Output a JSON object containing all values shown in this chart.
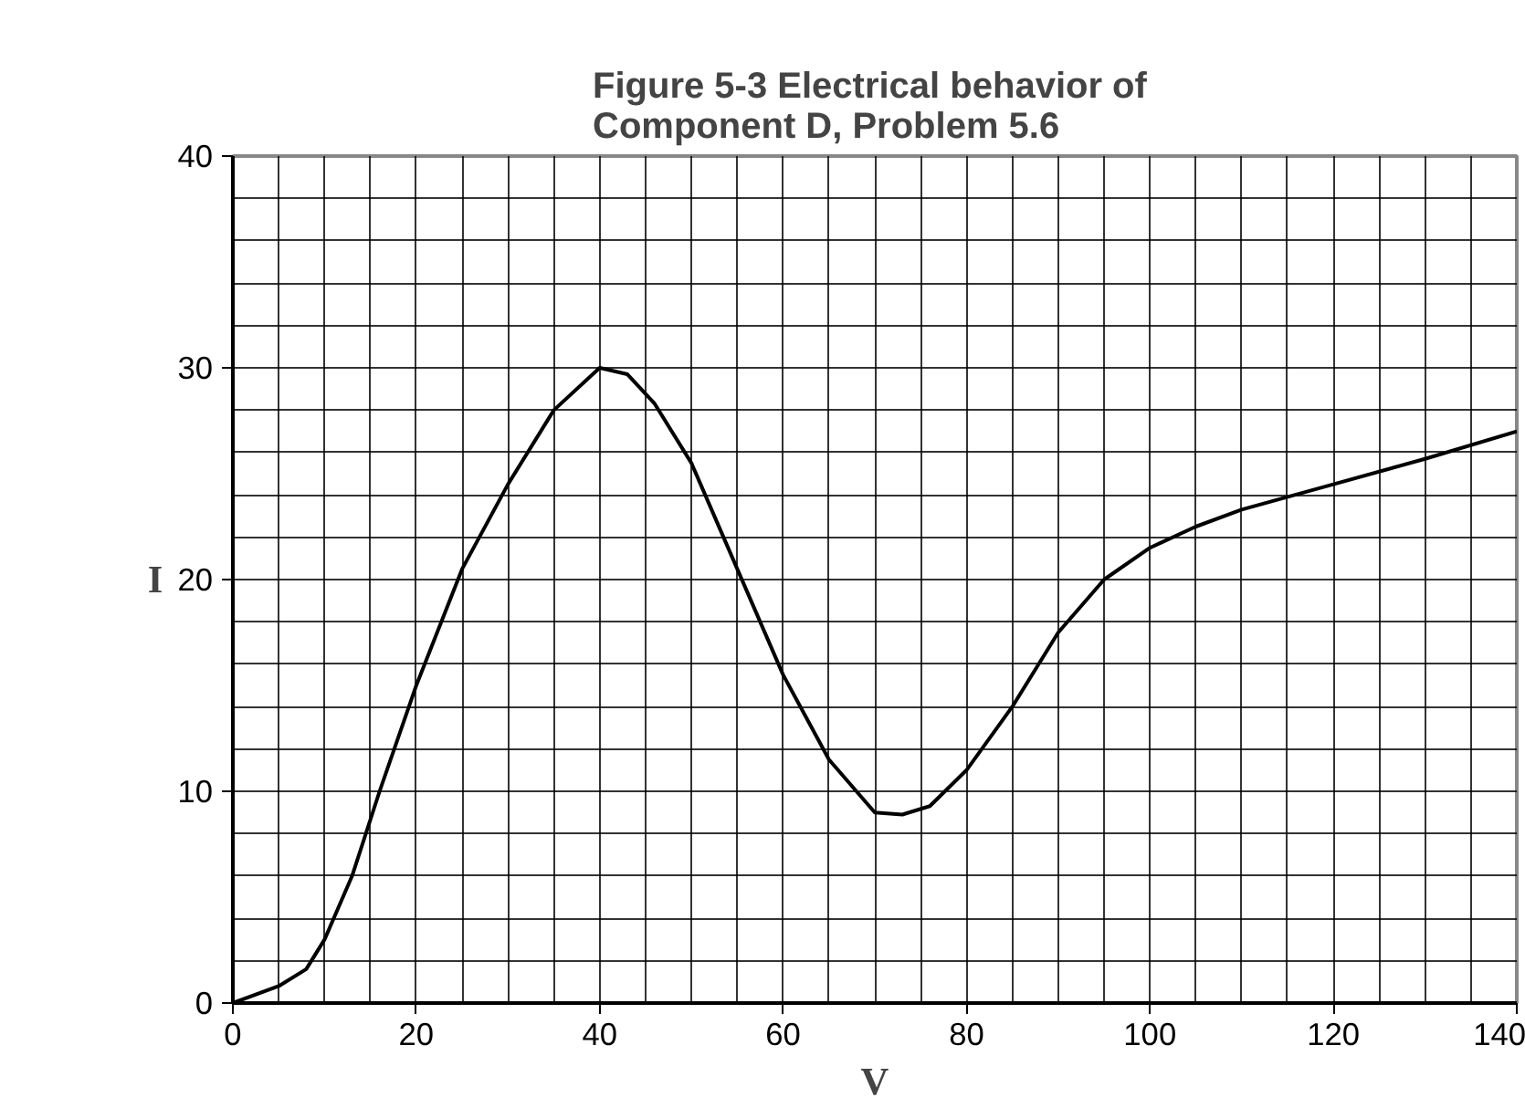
{
  "chart_data": {
    "type": "line",
    "title": "Figure 5-3  Electrical behavior of\nComponent D, Problem 5.6",
    "xlabel": "V",
    "ylabel": "I",
    "x": [
      0,
      5,
      8,
      10,
      13,
      16,
      20,
      25,
      30,
      35,
      40,
      43,
      46,
      50,
      55,
      60,
      65,
      70,
      73,
      76,
      80,
      85,
      90,
      95,
      100,
      105,
      110,
      120,
      130,
      140
    ],
    "series": [
      {
        "color": "#000000",
        "values": [
          0,
          0.8,
          1.6,
          3,
          6,
          10,
          15,
          20.5,
          24.5,
          28,
          30,
          29.7,
          28.3,
          25.5,
          20.5,
          15.5,
          11.5,
          9,
          8.9,
          9.3,
          11,
          14,
          17.5,
          20,
          21.5,
          22.5,
          23.3,
          24.5,
          25.7,
          27
        ]
      }
    ],
    "xlim": [
      0,
      140
    ],
    "ylim": [
      0,
      40
    ],
    "xticks": [
      0,
      {
        "value": 5,
        "label": null
      },
      {
        "value": 10,
        "label": null
      },
      {
        "value": 15,
        "label": null
      },
      20,
      {
        "value": 25,
        "label": null
      },
      {
        "value": 30,
        "label": null
      },
      {
        "value": 35,
        "label": null
      },
      40,
      {
        "value": 45,
        "label": null
      },
      {
        "value": 50,
        "label": null
      },
      {
        "value": 55,
        "label": null
      },
      60,
      {
        "value": 65,
        "label": null
      },
      {
        "value": 70,
        "label": null
      },
      {
        "value": 75,
        "label": null
      },
      80,
      {
        "value": 85,
        "label": null
      },
      {
        "value": 90,
        "label": null
      },
      {
        "value": 95,
        "label": null
      },
      100,
      {
        "value": 105,
        "label": null
      },
      {
        "value": 110,
        "label": null
      },
      {
        "value": 115,
        "label": null
      },
      120,
      {
        "value": 125,
        "label": null
      },
      {
        "value": 130,
        "label": null
      },
      {
        "value": 135,
        "label": null
      },
      140
    ],
    "yticks": [
      0,
      {
        "value": 2,
        "label": null
      },
      {
        "value": 4,
        "label": null
      },
      {
        "value": 6,
        "label": null
      },
      {
        "value": 8,
        "label": null
      },
      10,
      {
        "value": 12,
        "label": null
      },
      {
        "value": 14,
        "label": null
      },
      {
        "value": 16,
        "label": null
      },
      {
        "value": 18,
        "label": null
      },
      20,
      {
        "value": 22,
        "label": null
      },
      {
        "value": 24,
        "label": null
      },
      {
        "value": 26,
        "label": null
      },
      {
        "value": 28,
        "label": null
      },
      30,
      {
        "value": 32,
        "label": null
      },
      {
        "value": 34,
        "label": null
      },
      {
        "value": 36,
        "label": null
      },
      {
        "value": 38,
        "label": null
      },
      40
    ],
    "grid": true,
    "marker": "none",
    "line_style": "solid"
  }
}
